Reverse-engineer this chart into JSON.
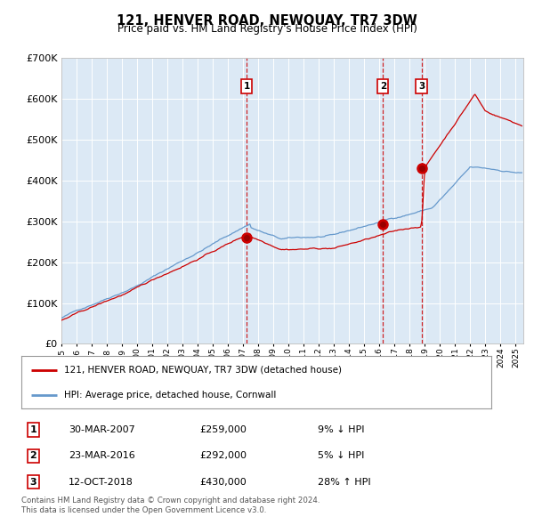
{
  "title": "121, HENVER ROAD, NEWQUAY, TR7 3DW",
  "subtitle": "Price paid vs. HM Land Registry's House Price Index (HPI)",
  "legend_label_red": "121, HENVER ROAD, NEWQUAY, TR7 3DW (detached house)",
  "legend_label_blue": "HPI: Average price, detached house, Cornwall",
  "footer_line1": "Contains HM Land Registry data © Crown copyright and database right 2024.",
  "footer_line2": "This data is licensed under the Open Government Licence v3.0.",
  "transactions": [
    {
      "num": 1,
      "date": "30-MAR-2007",
      "price": 259000,
      "pct": "9%",
      "dir": "↓",
      "year_x": 2007.23
    },
    {
      "num": 2,
      "date": "23-MAR-2016",
      "price": 292000,
      "pct": "5%",
      "dir": "↓",
      "year_x": 2016.23
    },
    {
      "num": 3,
      "date": "12-OCT-2018",
      "price": 430000,
      "pct": "28%",
      "dir": "↑",
      "year_x": 2018.78
    }
  ],
  "background_color": "#dce9f5",
  "fig_bg_color": "#ffffff",
  "red_line_color": "#cc0000",
  "blue_line_color": "#6699cc",
  "dashed_vline_color": "#cc0000",
  "grid_color": "#ffffff",
  "ylim": [
    0,
    700000
  ],
  "xlim_start": 1995.0,
  "xlim_end": 2025.5
}
